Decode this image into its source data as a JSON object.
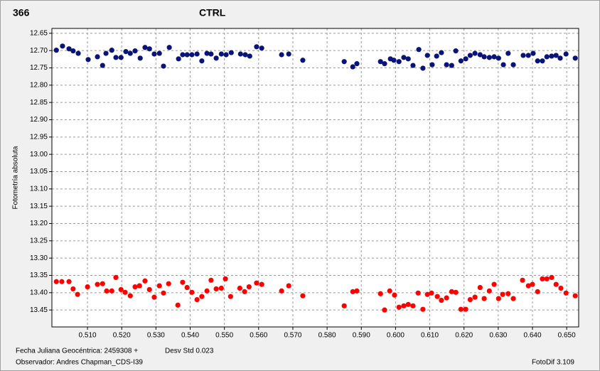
{
  "chart_data": {
    "type": "scatter",
    "label": "366",
    "title": "CTRL",
    "ylabel": "Fotometría absoluta",
    "xlabel": "Fecha Juliana Geocéntrica: 2459308 +",
    "stat": "Desv Std 0.023",
    "observer": "Observador: Andres Chapman_CDS-I39",
    "software": "FotoDif 3.109",
    "label_color": "#ff0000",
    "title_color": "#1a1a8c",
    "grid": true,
    "y_inverted": true,
    "xlim": [
      0.4996,
      0.6535
    ],
    "ylim": [
      12.636,
      13.499
    ],
    "xticks": [
      {
        "value": 0.51,
        "label": "0.510"
      },
      {
        "value": 0.52,
        "label": "0.520"
      },
      {
        "value": 0.53,
        "label": "0.530"
      },
      {
        "value": 0.54,
        "label": "0.540"
      },
      {
        "value": 0.55,
        "label": "0.550"
      },
      {
        "value": 0.56,
        "label": "0.560"
      },
      {
        "value": 0.57,
        "label": "0.570"
      },
      {
        "value": 0.58,
        "label": "0.580"
      },
      {
        "value": 0.59,
        "label": "0.590"
      },
      {
        "value": 0.6,
        "label": "0.600"
      },
      {
        "value": 0.61,
        "label": "0.610"
      },
      {
        "value": 0.62,
        "label": "0.620"
      },
      {
        "value": 0.63,
        "label": "0.630"
      },
      {
        "value": 0.64,
        "label": "0.640"
      },
      {
        "value": 0.65,
        "label": "0.650"
      }
    ],
    "yticks": [
      12.65,
      {
        "value": 12.7,
        "label": "12.70"
      },
      12.75,
      {
        "value": 12.8,
        "label": "12.80"
      },
      12.85,
      {
        "value": 12.9,
        "label": "12.90"
      },
      12.95,
      {
        "value": 13,
        "label": "13.00"
      },
      13.05,
      {
        "value": 13.1,
        "label": "13.10"
      },
      13.15,
      {
        "value": 13.2,
        "label": "13.20"
      },
      13.25,
      {
        "value": 13.3,
        "label": "13.30"
      },
      13.35,
      {
        "value": 13.4,
        "label": "13.40"
      },
      13.45
    ],
    "series": [
      {
        "color": "#0a1478",
        "x": [
          0.5009,
          0.5027,
          0.5046,
          0.5058,
          0.5073,
          0.5102,
          0.5129,
          0.5144,
          0.5154,
          0.5171,
          0.5183,
          0.5198,
          0.5212,
          0.5225,
          0.5239,
          0.5254,
          0.5268,
          0.5281,
          0.5295,
          0.531,
          0.5322,
          0.5339,
          0.5366,
          0.5378,
          0.5391,
          0.5405,
          0.542,
          0.5434,
          0.5449,
          0.5461,
          0.5476,
          0.5491,
          0.5505,
          0.552,
          0.5547,
          0.5561,
          0.5574,
          0.5594,
          0.5609,
          0.5667,
          0.5688,
          0.5729,
          0.585,
          0.5875,
          0.5887,
          0.5956,
          0.5968,
          0.5985,
          0.5995,
          0.601,
          0.6024,
          0.6037,
          0.6051,
          0.6068,
          0.608,
          0.6093,
          0.6107,
          0.612,
          0.6134,
          0.6149,
          0.6164,
          0.6176,
          0.6191,
          0.6205,
          0.6218,
          0.6232,
          0.6247,
          0.6259,
          0.6274,
          0.6288,
          0.6301,
          0.6315,
          0.6329,
          0.6344,
          0.6373,
          0.6388,
          0.6402,
          0.6415,
          0.6429,
          0.6442,
          0.6456,
          0.6469,
          0.6481,
          0.6498,
          0.6525
        ],
        "values": [
          12.699,
          12.687,
          12.695,
          12.701,
          12.708,
          12.726,
          12.718,
          12.743,
          12.708,
          12.699,
          12.72,
          12.72,
          12.703,
          12.708,
          12.701,
          12.722,
          12.691,
          12.695,
          12.71,
          12.708,
          12.745,
          12.691,
          12.724,
          12.712,
          12.712,
          12.712,
          12.71,
          12.73,
          12.708,
          12.71,
          12.722,
          12.71,
          12.712,
          12.706,
          12.71,
          12.712,
          12.716,
          12.689,
          12.693,
          12.712,
          12.71,
          12.728,
          12.732,
          12.747,
          12.738,
          12.732,
          12.738,
          12.724,
          12.728,
          12.732,
          12.72,
          12.724,
          12.743,
          12.697,
          12.751,
          12.714,
          12.741,
          12.716,
          12.706,
          12.741,
          12.743,
          12.701,
          12.73,
          12.724,
          12.714,
          12.708,
          12.712,
          12.718,
          12.72,
          12.718,
          12.722,
          12.741,
          12.708,
          12.741,
          12.714,
          12.714,
          12.708,
          12.73,
          12.73,
          12.718,
          12.716,
          12.714,
          12.722,
          12.71,
          12.722
        ]
      },
      {
        "color": "#ff0000",
        "x": [
          0.5009,
          0.5025,
          0.5046,
          0.5058,
          0.5071,
          0.51,
          0.5129,
          0.5144,
          0.5156,
          0.5171,
          0.5183,
          0.5198,
          0.521,
          0.5225,
          0.5239,
          0.5252,
          0.5268,
          0.5281,
          0.5295,
          0.531,
          0.5322,
          0.5337,
          0.5364,
          0.5378,
          0.5391,
          0.5405,
          0.542,
          0.5434,
          0.5449,
          0.5461,
          0.5476,
          0.5491,
          0.5503,
          0.5518,
          0.5545,
          0.5559,
          0.5572,
          0.5594,
          0.5609,
          0.5667,
          0.5688,
          0.5729,
          0.585,
          0.5875,
          0.5887,
          0.5956,
          0.5968,
          0.5983,
          0.5997,
          0.601,
          0.6024,
          0.6037,
          0.6051,
          0.6066,
          0.608,
          0.6093,
          0.6105,
          0.6122,
          0.6134,
          0.6149,
          0.6164,
          0.6176,
          0.6191,
          0.6205,
          0.6218,
          0.6232,
          0.6247,
          0.6259,
          0.6274,
          0.6288,
          0.6301,
          0.6313,
          0.6329,
          0.6344,
          0.6371,
          0.6388,
          0.64,
          0.6415,
          0.6429,
          0.6442,
          0.6456,
          0.6469,
          0.6483,
          0.6498,
          0.6525
        ],
        "values": [
          13.368,
          13.368,
          13.368,
          13.389,
          13.405,
          13.383,
          13.376,
          13.374,
          13.395,
          13.395,
          13.356,
          13.391,
          13.399,
          13.409,
          13.383,
          13.38,
          13.366,
          13.391,
          13.413,
          13.38,
          13.401,
          13.374,
          13.436,
          13.37,
          13.385,
          13.399,
          13.42,
          13.411,
          13.395,
          13.364,
          13.389,
          13.387,
          13.36,
          13.411,
          13.387,
          13.397,
          13.383,
          13.372,
          13.376,
          13.395,
          13.38,
          13.409,
          13.438,
          13.397,
          13.395,
          13.403,
          13.45,
          13.395,
          13.407,
          13.442,
          13.438,
          13.434,
          13.438,
          13.401,
          13.448,
          13.405,
          13.401,
          13.411,
          13.422,
          13.415,
          13.397,
          13.399,
          13.448,
          13.448,
          13.42,
          13.413,
          13.385,
          13.417,
          13.395,
          13.376,
          13.417,
          13.405,
          13.403,
          13.417,
          13.364,
          13.38,
          13.376,
          13.397,
          13.36,
          13.36,
          13.356,
          13.376,
          13.387,
          13.401,
          13.409
        ]
      }
    ]
  }
}
